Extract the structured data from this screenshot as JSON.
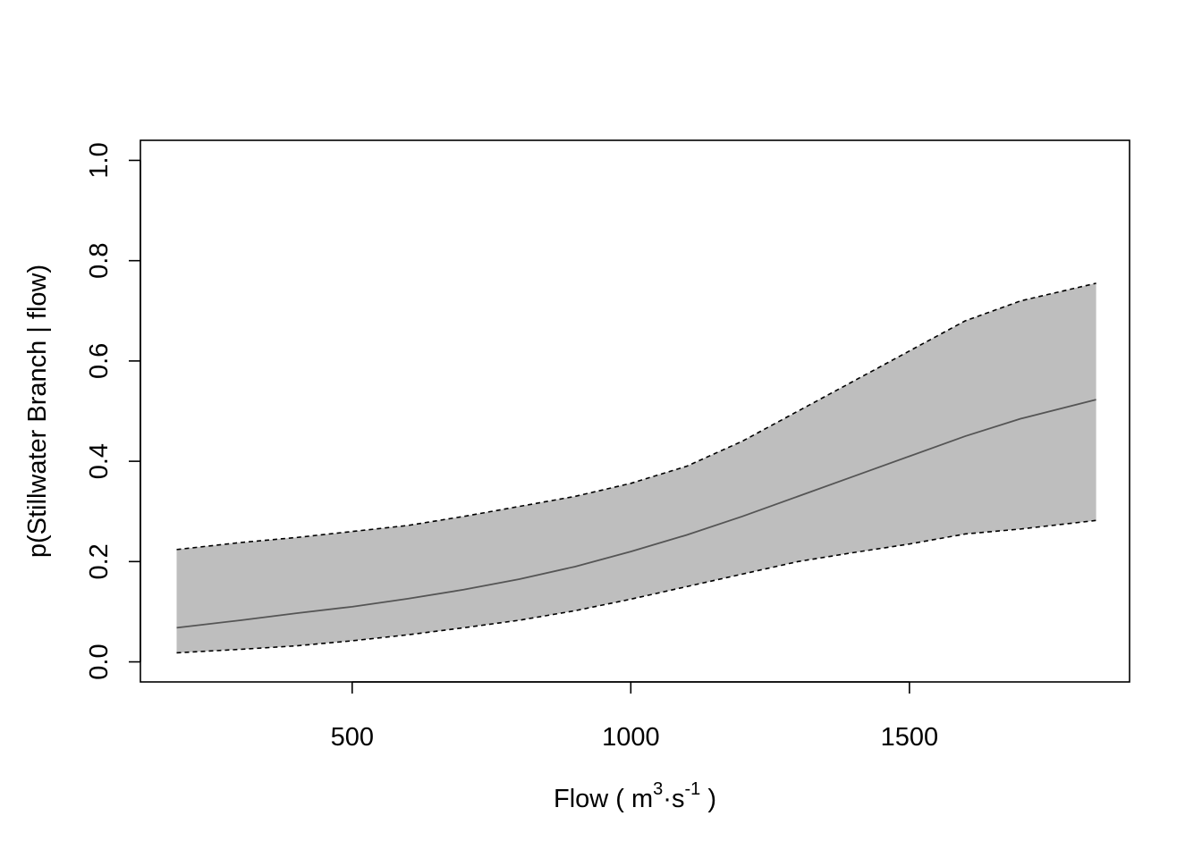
{
  "chart_data": {
    "type": "line",
    "title": "",
    "xlabel": {
      "prefix": "Flow ( m",
      "sup1": "3",
      "middle": "·s",
      "sup2": "-1",
      "suffix": " )"
    },
    "ylabel": "p(Stillwater Branch | flow)",
    "xlim": [
      120,
      1895
    ],
    "ylim": [
      -0.04,
      1.04
    ],
    "xticks": [
      500,
      1000,
      1500
    ],
    "xtick_labels": [
      "500",
      "1000",
      "1500"
    ],
    "yticks": [
      0.0,
      0.2,
      0.4,
      0.6,
      0.8,
      1.0
    ],
    "ytick_labels": [
      "0.0",
      "0.2",
      "0.4",
      "0.6",
      "0.8",
      "1.0"
    ],
    "grid": false,
    "series": [
      {
        "role": "fit",
        "style": "solid",
        "color": "#555555",
        "x": [
          185,
          300,
          400,
          500,
          600,
          700,
          800,
          900,
          1000,
          1100,
          1200,
          1300,
          1400,
          1500,
          1600,
          1700,
          1835
        ],
        "y": [
          0.068,
          0.083,
          0.097,
          0.11,
          0.126,
          0.144,
          0.165,
          0.19,
          0.22,
          0.253,
          0.29,
          0.33,
          0.37,
          0.41,
          0.45,
          0.485,
          0.523
        ]
      },
      {
        "role": "upper",
        "style": "dashed",
        "color": "#000000",
        "x": [
          185,
          300,
          400,
          500,
          600,
          700,
          800,
          900,
          1000,
          1100,
          1200,
          1300,
          1400,
          1500,
          1600,
          1700,
          1835
        ],
        "y": [
          0.224,
          0.238,
          0.248,
          0.26,
          0.272,
          0.29,
          0.31,
          0.33,
          0.356,
          0.39,
          0.44,
          0.5,
          0.56,
          0.62,
          0.68,
          0.72,
          0.755
        ]
      },
      {
        "role": "lower",
        "style": "dashed",
        "color": "#000000",
        "x": [
          185,
          300,
          400,
          500,
          600,
          700,
          800,
          900,
          1000,
          1100,
          1200,
          1300,
          1400,
          1500,
          1600,
          1700,
          1835
        ],
        "y": [
          0.018,
          0.025,
          0.032,
          0.042,
          0.054,
          0.068,
          0.083,
          0.102,
          0.125,
          0.15,
          0.175,
          0.2,
          0.218,
          0.235,
          0.255,
          0.265,
          0.282
        ]
      }
    ],
    "band_color": "#bebebe"
  }
}
